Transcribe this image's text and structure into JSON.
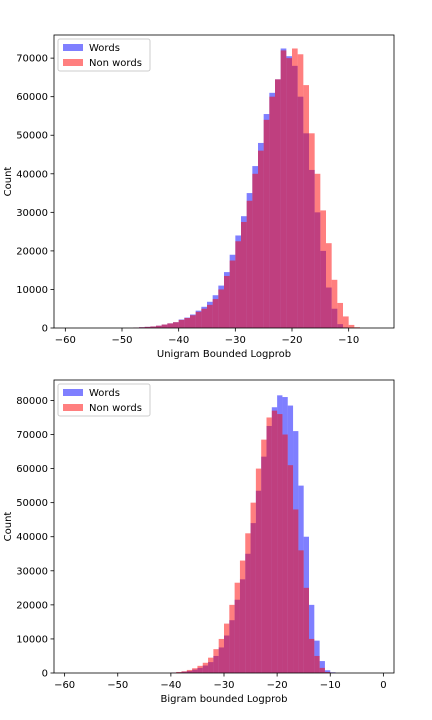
{
  "chart_data": [
    {
      "type": "bar",
      "xlabel": "Unigram Bounded Logprob",
      "ylabel": "Count",
      "xlim": [
        -62,
        -2
      ],
      "ylim": [
        0,
        76000
      ],
      "xticks": [
        -60,
        -50,
        -40,
        -30,
        -20,
        -10
      ],
      "yticks": [
        0,
        10000,
        20000,
        30000,
        40000,
        50000,
        60000,
        70000
      ],
      "legend_position": "upper-left",
      "bin_width": 1,
      "series": [
        {
          "name": "Words",
          "color": "#0000ff",
          "bin_start": -48,
          "values": [
            100,
            200,
            300,
            400,
            600,
            900,
            1200,
            1500,
            2200,
            2700,
            3500,
            4500,
            5500,
            6800,
            8500,
            11000,
            14500,
            19000,
            24000,
            29000,
            35000,
            42000,
            48000,
            55500,
            61000,
            64500,
            72500,
            70500,
            68000,
            60000,
            50500,
            41000,
            30000,
            20000,
            10500,
            5000,
            1000,
            150,
            0,
            0
          ]
        },
        {
          "name": "Non words",
          "color": "#ff0000",
          "bin_start": -48,
          "values": [
            100,
            200,
            300,
            400,
            600,
            900,
            1200,
            1500,
            2100,
            2600,
            3300,
            4200,
            5000,
            6000,
            7500,
            10000,
            13500,
            17500,
            22500,
            27500,
            33000,
            40000,
            46000,
            54000,
            60000,
            64500,
            72000,
            70000,
            72500,
            71000,
            63000,
            50500,
            40000,
            30500,
            22000,
            12500,
            6500,
            3000,
            800,
            200
          ]
        }
      ]
    },
    {
      "type": "bar",
      "xlabel": "Bigram bounded Logprob",
      "ylabel": "Count",
      "xlim": [
        -62,
        2
      ],
      "ylim": [
        0,
        86000
      ],
      "xticks": [
        -60,
        -50,
        -40,
        -30,
        -20,
        -10,
        0
      ],
      "yticks": [
        0,
        10000,
        20000,
        30000,
        40000,
        50000,
        60000,
        70000,
        80000
      ],
      "legend_position": "upper-left",
      "bin_width": 1,
      "series": [
        {
          "name": "Words",
          "color": "#0000ff",
          "bin_start": -40,
          "values": [
            100,
            200,
            400,
            600,
            1000,
            1500,
            2200,
            3200,
            5000,
            7500,
            11000,
            15500,
            21500,
            27500,
            35000,
            44000,
            53500,
            63500,
            72500,
            78000,
            81500,
            81000,
            78500,
            71000,
            55000,
            40000,
            20000,
            9500,
            3500,
            800,
            200
          ]
        },
        {
          "name": "Non words",
          "color": "#ff0000",
          "bin_start": -40,
          "values": [
            100,
            300,
            500,
            900,
            1400,
            2100,
            3000,
            4500,
            7000,
            10000,
            14500,
            20000,
            26500,
            33000,
            41000,
            50000,
            60000,
            68500,
            75000,
            77000,
            76000,
            70000,
            61000,
            48000,
            36000,
            25000,
            10000,
            5000,
            1500,
            300,
            50
          ]
        }
      ]
    }
  ]
}
